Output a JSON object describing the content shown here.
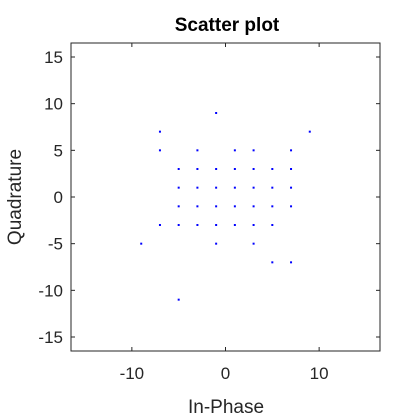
{
  "chart_data": {
    "type": "scatter",
    "title": "Scatter plot",
    "xlabel": "In-Phase",
    "ylabel": "Quadrature",
    "xlim": [
      -16.5,
      16.5
    ],
    "ylim": [
      -16.5,
      16.5
    ],
    "xticks": [
      -10,
      0,
      10
    ],
    "xtick_labels": [
      "-10",
      "0",
      "10"
    ],
    "yticks": [
      -15,
      -10,
      -5,
      0,
      5,
      10,
      15
    ],
    "ytick_labels": [
      "-15",
      "-10",
      "-5",
      "0",
      "5",
      "10",
      "15"
    ],
    "grid": false,
    "marker_color": "#0000ff",
    "axis_color": "#262626",
    "points": [
      {
        "x": -7,
        "y": 7
      },
      {
        "x": -1,
        "y": 9
      },
      {
        "x": 9,
        "y": 7
      },
      {
        "x": -7,
        "y": 5
      },
      {
        "x": -3,
        "y": 5
      },
      {
        "x": 1,
        "y": 5
      },
      {
        "x": 3,
        "y": 5
      },
      {
        "x": 7,
        "y": 5
      },
      {
        "x": -5,
        "y": 3
      },
      {
        "x": -3,
        "y": 3
      },
      {
        "x": -1,
        "y": 3
      },
      {
        "x": 1,
        "y": 3
      },
      {
        "x": 3,
        "y": 3
      },
      {
        "x": 5,
        "y": 3
      },
      {
        "x": 7,
        "y": 3
      },
      {
        "x": -5,
        "y": 1
      },
      {
        "x": -3,
        "y": 1
      },
      {
        "x": -1,
        "y": 1
      },
      {
        "x": 1,
        "y": 1
      },
      {
        "x": 3,
        "y": 1
      },
      {
        "x": 5,
        "y": 1
      },
      {
        "x": 7,
        "y": 1
      },
      {
        "x": -5,
        "y": -1
      },
      {
        "x": -3,
        "y": -1
      },
      {
        "x": -1,
        "y": -1
      },
      {
        "x": 1,
        "y": -1
      },
      {
        "x": 3,
        "y": -1
      },
      {
        "x": 5,
        "y": -1
      },
      {
        "x": 7,
        "y": -1
      },
      {
        "x": -7,
        "y": -3
      },
      {
        "x": -5,
        "y": -3
      },
      {
        "x": -3,
        "y": -3
      },
      {
        "x": -1,
        "y": -3
      },
      {
        "x": 1,
        "y": -3
      },
      {
        "x": 3,
        "y": -3
      },
      {
        "x": 5,
        "y": -3
      },
      {
        "x": -9,
        "y": -5
      },
      {
        "x": -1,
        "y": -5
      },
      {
        "x": 3,
        "y": -5
      },
      {
        "x": 5,
        "y": -7
      },
      {
        "x": 7,
        "y": -7
      },
      {
        "x": -5,
        "y": -11
      }
    ]
  }
}
